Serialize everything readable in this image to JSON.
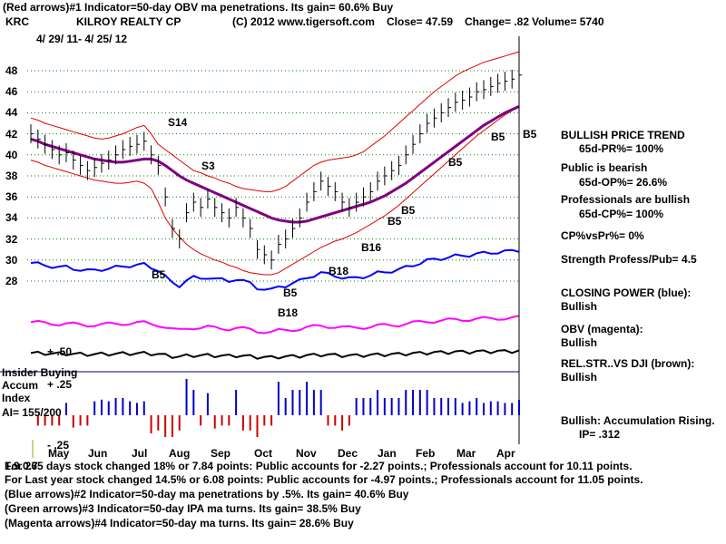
{
  "header": {
    "line1": "(Red arrows)#1 Indicator=50-day OBV ma penetrations. Its gain= 60.6% Buy",
    "ticker": "KRC",
    "company": "KILROY REALTY CP",
    "copyright": "(C) 2012 www.tigersoft.com",
    "close": "Close=  47.59",
    "change": "Change= .82",
    "volume": "Volume= 5740",
    "date_range": "4/ 29/ 11-  4/ 25/ 12"
  },
  "side": {
    "trend_title": "BULLISH PRICE TREND",
    "pr": "65d-PR%= 100%",
    "public_title": "Public is bearish",
    "op": "65d-OP%= 26.6%",
    "pro_title": "Professionals are bullish",
    "cp": "65d-CP%= 100%",
    "cpvspr": "CP%vsPr%=  0%",
    "strength": "Strength Profess/Pub= 4.5",
    "closing_power": "CLOSING POWER (blue):",
    "closing_power_val": "Bullish",
    "obv": "OBV (magenta):",
    "obv_val": "Bullish",
    "relstr": "REL.STR..VS DJI (brown):",
    "relstr_val": "Bullish",
    "accum": "Bullish: Accumulation Rising.",
    "ip": "IP=  .312"
  },
  "indicator_labels": {
    "insider": "Insider Buying",
    "accum": "Accum",
    "index": "Index",
    "ai": "AI= 155/200",
    "plus50": "+ .50",
    "plus25": "+ .25",
    "minus25": "- .25"
  },
  "footer": {
    "line1_a": "For 265 days stock changed  18% or  7.84 points:  Public accounts for -2.27 points.;  Professionals account for  10.11 points.",
    "line2": "For Last year stock changed  14.5% or  6.08 points:  Public accounts for -4.97 points.;  Professionals account for  11.05 points.",
    "line3": "(Blue arrows)#2 Indicator=50-day ma penetrations by .5%. Its gain= 40.6% Buy",
    "line4": "(Green arrows)#3 Indicator=50-day IPA ma turns. Its gain= 38.5% Buy",
    "line5": "(Magenta arrows)#4 Indicator=50-day ma turns. Its gain= 28.6% Buy",
    "overlap_prefix": "1.9.0.7"
  },
  "signals": [
    {
      "label": "S14"
    },
    {
      "label": "S3"
    },
    {
      "label": "B5"
    },
    {
      "label": "B5"
    },
    {
      "label": "B18"
    },
    {
      "label": "B18"
    },
    {
      "label": "B16"
    },
    {
      "label": "B5"
    },
    {
      "label": "B5"
    },
    {
      "label": "B5"
    },
    {
      "label": "B5"
    },
    {
      "label": "B5"
    }
  ],
  "colors": {
    "price": "#000000",
    "bands": "#dd0000",
    "ma50": "#800080",
    "closing_power": "#0000ff",
    "obv": "#ff00ff",
    "relstr": "#000000",
    "accum_pos": "#0000cc",
    "accum_neg": "#cc0000",
    "grid": "#008000"
  },
  "chart_data": {
    "type": "line",
    "title": "KILROY REALTY CP (KRC)",
    "ylim": [
      28,
      48
    ],
    "yticks": [
      28,
      30,
      32,
      34,
      36,
      38,
      40,
      42,
      44,
      46,
      48
    ],
    "months": [
      "May",
      "Jun",
      "Jul",
      "Aug",
      "Sep",
      "Oct",
      "Nov",
      "Dec",
      "Jan",
      "Feb",
      "Mar",
      "Apr"
    ],
    "price": [
      42.0,
      41.5,
      41.0,
      40.5,
      40.0,
      40.2,
      39.5,
      39.0,
      38.5,
      38.8,
      39.2,
      39.5,
      40.0,
      40.5,
      40.8,
      41.0,
      41.3,
      40.0,
      39.0,
      36.0,
      33.0,
      32.0,
      34.5,
      35.5,
      35.0,
      35.8,
      35.0,
      34.5,
      34.0,
      35.0,
      34.0,
      33.0,
      31.0,
      30.5,
      30.0,
      31.5,
      32.0,
      33.0,
      34.0,
      35.5,
      36.5,
      37.5,
      37.0,
      36.5,
      35.5,
      35.0,
      35.5,
      36.0,
      36.5,
      37.5,
      38.0,
      38.5,
      39.0,
      40.0,
      41.0,
      42.0,
      43.0,
      43.5,
      44.0,
      44.5,
      45.0,
      45.2,
      45.5,
      46.0,
      46.2,
      46.5,
      46.8,
      47.0,
      47.2,
      47.59
    ],
    "ma50": [
      41.5,
      41.3,
      41.0,
      40.8,
      40.6,
      40.4,
      40.2,
      40.0,
      39.8,
      39.6,
      39.5,
      39.4,
      39.3,
      39.3,
      39.4,
      39.5,
      39.6,
      39.6,
      39.4,
      39.0,
      38.5,
      38.0,
      37.6,
      37.3,
      37.0,
      36.7,
      36.4,
      36.1,
      35.8,
      35.5,
      35.2,
      34.9,
      34.6,
      34.3,
      34.0,
      33.8,
      33.7,
      33.6,
      33.6,
      33.7,
      33.9,
      34.1,
      34.3,
      34.5,
      34.7,
      34.9,
      35.1,
      35.3,
      35.5,
      35.8,
      36.1,
      36.5,
      36.9,
      37.3,
      37.8,
      38.3,
      38.8,
      39.3,
      39.8,
      40.3,
      40.8,
      41.3,
      41.8,
      42.3,
      42.8,
      43.2,
      43.6,
      44.0,
      44.3,
      44.6
    ],
    "upper_band": [
      43.5,
      43.3,
      43.0,
      42.8,
      42.6,
      42.4,
      42.2,
      42.0,
      41.8,
      41.6,
      41.5,
      41.6,
      41.8,
      42.0,
      42.3,
      42.6,
      42.8,
      42.0,
      41.0,
      40.5,
      40.0,
      39.5,
      39.0,
      38.5,
      38.3,
      38.0,
      37.8,
      37.5,
      37.3,
      37.0,
      36.8,
      36.7,
      36.6,
      36.5,
      36.5,
      36.7,
      37.0,
      37.5,
      38.0,
      38.5,
      39.0,
      39.3,
      39.5,
      39.6,
      39.7,
      39.8,
      40.0,
      40.3,
      40.8,
      41.3,
      41.8,
      42.4,
      43.0,
      43.6,
      44.2,
      44.8,
      45.4,
      46.0,
      46.5,
      47.0,
      47.5,
      47.9,
      48.2,
      48.5,
      48.8,
      49.0,
      49.2,
      49.4,
      49.6,
      49.8
    ],
    "lower_band": [
      39.5,
      39.3,
      39.0,
      38.8,
      38.6,
      38.4,
      38.2,
      38.0,
      37.8,
      37.6,
      37.5,
      37.4,
      37.3,
      37.3,
      37.4,
      37.5,
      37.3,
      36.8,
      35.5,
      34.0,
      33.0,
      32.2,
      31.5,
      31.0,
      30.6,
      30.3,
      30.0,
      29.8,
      29.5,
      29.3,
      29.0,
      28.8,
      28.7,
      28.6,
      28.6,
      28.8,
      29.2,
      29.6,
      30.0,
      30.4,
      30.8,
      31.2,
      31.5,
      31.8,
      32.0,
      32.3,
      32.6,
      33.0,
      33.4,
      33.8,
      34.2,
      34.7,
      35.2,
      35.8,
      36.4,
      37.0,
      37.6,
      38.2,
      38.8,
      39.4,
      40.0,
      40.6,
      41.2,
      41.8,
      42.3,
      42.8,
      43.3,
      43.8,
      44.2,
      44.6
    ]
  }
}
